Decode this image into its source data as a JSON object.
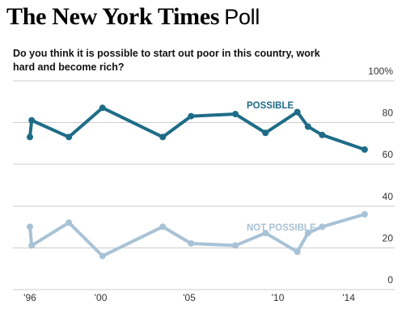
{
  "header": {
    "brand": "The New York Times",
    "suffix": "Poll"
  },
  "question": "Do you think it is possible to start out poor in this country, work hard and become rich?",
  "colors": {
    "possible": "#1e6c87",
    "not_possible": "#a8c2d6",
    "grid": "#cccccc",
    "text": "#333333"
  },
  "chart_data": {
    "type": "line",
    "ylim": [
      0,
      100
    ],
    "y_ticks": [
      "0",
      "20",
      "40",
      "60",
      "80",
      "100%"
    ],
    "x_ticks": [
      {
        "label": "'96",
        "year": 1996
      },
      {
        "label": "'00",
        "year": 2000
      },
      {
        "label": "'05",
        "year": 2005
      },
      {
        "label": "'10",
        "year": 2010
      },
      {
        "label": "'14",
        "year": 2014
      }
    ],
    "series": [
      {
        "name": "POSSIBLE",
        "color": "#1e6c87",
        "points": [
          {
            "x": 1996.0,
            "y": 70
          },
          {
            "x": 1996.1,
            "y": 78
          },
          {
            "x": 1998.2,
            "y": 70
          },
          {
            "x": 2000.1,
            "y": 84
          },
          {
            "x": 2003.5,
            "y": 70
          },
          {
            "x": 2005.1,
            "y": 80
          },
          {
            "x": 2007.6,
            "y": 81
          },
          {
            "x": 2009.3,
            "y": 72
          },
          {
            "x": 2011.1,
            "y": 82
          },
          {
            "x": 2011.7,
            "y": 75
          },
          {
            "x": 2012.5,
            "y": 71
          },
          {
            "x": 2014.9,
            "y": 64
          }
        ]
      },
      {
        "name": "NOT POSSIBLE",
        "color": "#a8c2d6",
        "points": [
          {
            "x": 1996.0,
            "y": 27
          },
          {
            "x": 1996.1,
            "y": 18
          },
          {
            "x": 1998.2,
            "y": 29
          },
          {
            "x": 2000.1,
            "y": 13
          },
          {
            "x": 2003.5,
            "y": 27
          },
          {
            "x": 2005.1,
            "y": 19
          },
          {
            "x": 2007.6,
            "y": 18
          },
          {
            "x": 2009.3,
            "y": 24
          },
          {
            "x": 2011.1,
            "y": 15
          },
          {
            "x": 2011.7,
            "y": 24
          },
          {
            "x": 2012.5,
            "y": 27
          },
          {
            "x": 2014.9,
            "y": 33
          }
        ]
      }
    ]
  }
}
